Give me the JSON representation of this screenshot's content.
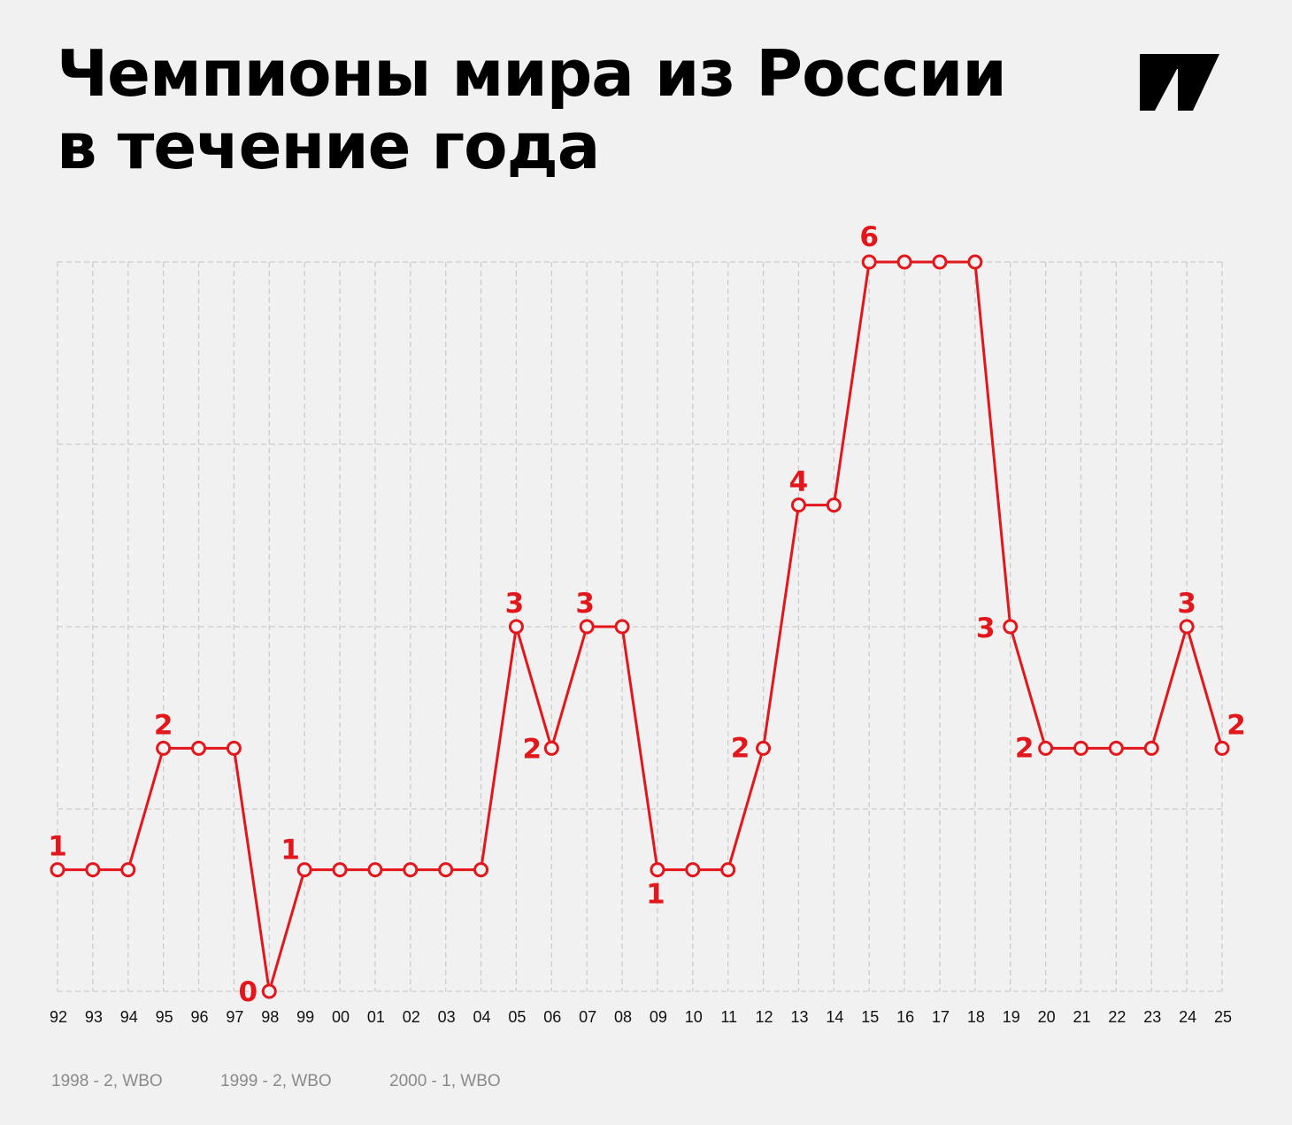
{
  "title_lines": [
    "Чемпионы мира из России",
    "в течение года"
  ],
  "logo": "publisher-logo",
  "colors": {
    "line": "#e3161b",
    "grid": "#cccccc",
    "background": "#f1f1f1",
    "text": "#000000",
    "footnote": "#8a8a8a"
  },
  "chart_data": {
    "type": "line",
    "categories": [
      "92",
      "93",
      "94",
      "95",
      "96",
      "97",
      "98",
      "99",
      "00",
      "01",
      "02",
      "03",
      "04",
      "05",
      "06",
      "07",
      "08",
      "09",
      "10",
      "11",
      "12",
      "13",
      "14",
      "15",
      "16",
      "17",
      "18",
      "19",
      "20",
      "21",
      "22",
      "23",
      "24",
      "25"
    ],
    "values": [
      1,
      1,
      1,
      2,
      2,
      2,
      0,
      1,
      1,
      1,
      1,
      1,
      1,
      3,
      2,
      3,
      3,
      1,
      1,
      1,
      2,
      4,
      4,
      6,
      6,
      6,
      6,
      3,
      2,
      2,
      2,
      2,
      3,
      2
    ],
    "ylim": [
      0,
      6
    ],
    "ygrid": [
      0,
      1.5,
      3,
      4.5,
      6
    ],
    "grid": true,
    "markers": "hollow-circle",
    "data_labels": [
      {
        "x": "92",
        "text": "1"
      },
      {
        "x": "95",
        "text": "2"
      },
      {
        "x": "98",
        "text": "0"
      },
      {
        "x": "99",
        "text": "1"
      },
      {
        "x": "05",
        "text": "3"
      },
      {
        "x": "06",
        "text": "2"
      },
      {
        "x": "07",
        "text": "3"
      },
      {
        "x": "09",
        "text": "1"
      },
      {
        "x": "12",
        "text": "2"
      },
      {
        "x": "13",
        "text": "4"
      },
      {
        "x": "15",
        "text": "6"
      },
      {
        "x": "19",
        "text": "3"
      },
      {
        "x": "20",
        "text": "2"
      },
      {
        "x": "24",
        "text": "3"
      },
      {
        "x": "25",
        "text": "2"
      }
    ]
  },
  "footnotes": [
    "1998 - 2, WBO",
    "1999 - 2, WBO",
    "2000 - 1, WBO"
  ]
}
